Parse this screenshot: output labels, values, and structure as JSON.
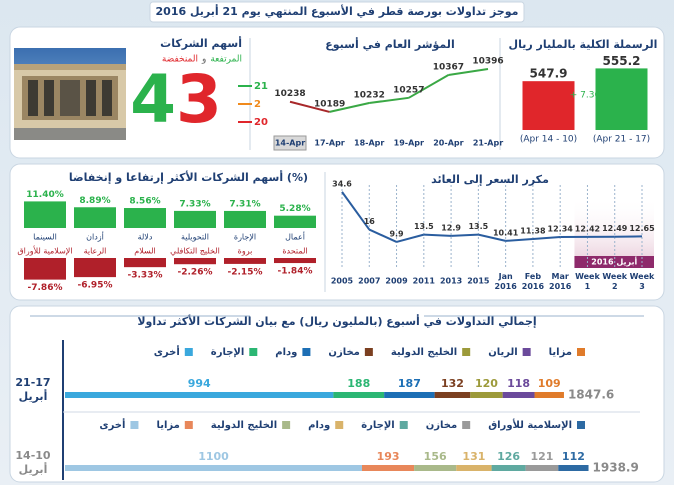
{
  "title": "موجز تداولات بورصة قطر في الأسبوع المنتهي يوم 21 أبريل 2016",
  "chart_data": [
    {
      "type": "bar",
      "title": "الرسملة الكلية بالمليار ريال",
      "categories": [
        "(Apr 14 - 10)",
        "(Apr 21 - 17)"
      ],
      "values": [
        547.9,
        555.2
      ],
      "colors": [
        "#e0262b",
        "#2bb24c"
      ],
      "annotation": "+ 7.30",
      "ylim": [
        520,
        560
      ]
    },
    {
      "type": "line",
      "title": "المؤشر العام في أسبوع",
      "categories": [
        "14-Apr",
        "17-Apr",
        "18-Apr",
        "19-Apr",
        "20-Apr",
        "21-Apr"
      ],
      "values": [
        10238,
        10189,
        10232,
        10257,
        10367,
        10396
      ],
      "color_up": "#3aa845",
      "color_down": "#a8282a",
      "ylim": [
        10150,
        10420
      ]
    },
    {
      "type": "count",
      "title": "أسهم الشركات",
      "subtitle_up": "المرتفعة",
      "subtitle_join": "و",
      "subtitle_down": "المنخفضة",
      "total": 43,
      "values": [
        21,
        2,
        20
      ],
      "colors": [
        "#2bb24c",
        "#f08a1c",
        "#e0262b"
      ]
    },
    {
      "type": "bar",
      "title": "أسهم الشركات الأكثر إرتفاعا و إنخفاضا (%)",
      "categories": [
        "السينما",
        "أزدان",
        "دلالة",
        "التحويلية",
        "الإجارة",
        "أعمال"
      ],
      "values": [
        11.4,
        8.89,
        8.56,
        7.33,
        7.31,
        5.28
      ],
      "value_labels": [
        "11.40%",
        "8.89%",
        "8.56%",
        "7.33%",
        "7.31%",
        "5.28%"
      ],
      "color": "#2bb24c",
      "ylim": [
        0,
        12
      ]
    },
    {
      "type": "bar",
      "categories": [
        "الإسلامية للأوراق",
        "الرعاية",
        "السلام",
        "الخليج التكافلي",
        "بروة",
        "المتحدة"
      ],
      "values": [
        -7.86,
        -6.95,
        -3.33,
        -2.26,
        -2.15,
        -1.84
      ],
      "value_labels": [
        "-7.86%",
        "-6.95%",
        "-3.33%",
        "-2.26%",
        "-2.15%",
        "-1.84%"
      ],
      "color": "#b0202a",
      "ylim": [
        -8,
        0
      ]
    },
    {
      "type": "line",
      "title": "مكرر السعر إلى العائد",
      "categories": [
        "2005",
        "2007",
        "2009",
        "2011",
        "2013",
        "2015",
        "Jan 2016",
        "Feb 2016",
        "Mar 2016",
        "Week 1",
        "Week 2",
        "Week 3"
      ],
      "values": [
        34.6,
        16,
        9.9,
        13.5,
        12.9,
        13.5,
        10.41,
        11.38,
        12.34,
        12.42,
        12.49,
        12.65
      ],
      "color": "#2a5d9f",
      "ylim": [
        0,
        38
      ],
      "grid": true,
      "annotation": "أبريل 2016"
    },
    {
      "type": "stacked_bar",
      "title": "إجمالي التداولات في أسبوع (بالمليون ريال) مع بيان الشركات الأكثر تداولا",
      "category": "21-17 أبريل",
      "total": 1847.6,
      "xlim": [
        0,
        2000
      ],
      "series": [
        {
          "name": "أخرى",
          "color": "#3aa8dd",
          "values": [
            994
          ]
        },
        {
          "name": "الإجارة",
          "color": "#2bb673",
          "values": [
            188
          ]
        },
        {
          "name": "ودام",
          "color": "#1d6fb5",
          "values": [
            187
          ]
        },
        {
          "name": "مخازن",
          "color": "#7b3f20",
          "values": [
            132
          ]
        },
        {
          "name": "الخليج الدولية",
          "color": "#9c9a3a",
          "values": [
            120
          ]
        },
        {
          "name": "الريان",
          "color": "#6b4a9b",
          "values": [
            118
          ]
        },
        {
          "name": "مزايا",
          "color": "#e07b2a",
          "values": [
            109
          ]
        }
      ]
    },
    {
      "type": "stacked_bar",
      "category": "14-10 أبريل",
      "total": 1938.9,
      "xlim": [
        0,
        2000
      ],
      "series": [
        {
          "name": "أخرى",
          "color": "#9ec7e3",
          "values": [
            1100
          ]
        },
        {
          "name": "مزايا",
          "color": "#e8875a",
          "values": [
            193
          ]
        },
        {
          "name": "الخليج الدولية",
          "color": "#a9b98a",
          "values": [
            156
          ]
        },
        {
          "name": "ودام",
          "color": "#d9b36a",
          "values": [
            131
          ]
        },
        {
          "name": "الإجارة",
          "color": "#5fa9a0",
          "values": [
            126
          ]
        },
        {
          "name": "مخازن",
          "color": "#9a9a9a",
          "values": [
            121
          ]
        },
        {
          "name": "الإسلامية للأوراق",
          "color": "#2d6aa3",
          "values": [
            112
          ]
        }
      ]
    }
  ]
}
